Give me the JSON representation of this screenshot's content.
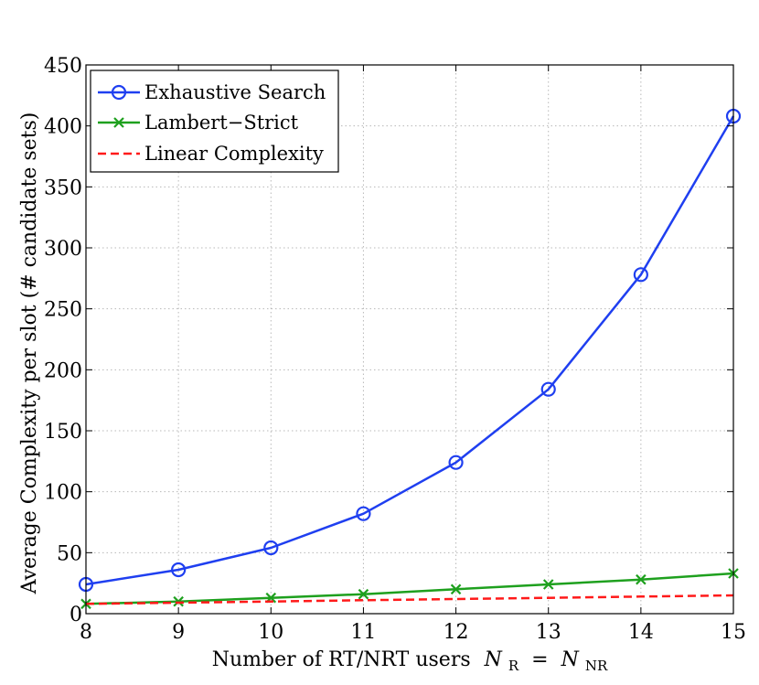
{
  "chart_data": {
    "type": "line",
    "title": "",
    "xlabel": "Number of RT/NRT users",
    "xlabel_math": {
      "left": "N",
      "left_sub": "R",
      "eq": " = ",
      "right": "N",
      "right_sub": "NR"
    },
    "ylabel": "Average Complexity per slot (# candidate sets)",
    "x": [
      8,
      9,
      10,
      11,
      12,
      13,
      14,
      15
    ],
    "xlim": [
      8,
      15
    ],
    "ylim": [
      0,
      450
    ],
    "xticks": [
      "8",
      "9",
      "10",
      "11",
      "12",
      "13",
      "14",
      "15"
    ],
    "yticks": [
      "0",
      "50",
      "100",
      "150",
      "200",
      "250",
      "300",
      "350",
      "400",
      "450"
    ],
    "grid": true,
    "legend_position": "top-left",
    "series": [
      {
        "name": "Exhaustive Search",
        "color": "#1f3ff0",
        "marker": "circle",
        "line": "solid",
        "values": [
          24,
          36,
          54,
          82,
          124,
          184,
          278,
          408
        ]
      },
      {
        "name": "Lambert−Strict",
        "color": "#1ea01e",
        "marker": "x",
        "line": "solid",
        "values": [
          8,
          10,
          13,
          16,
          20,
          24,
          28,
          33
        ]
      },
      {
        "name": "Linear Complexity",
        "color": "#ff1a1a",
        "marker": "none",
        "line": "dashed",
        "values": [
          8,
          9,
          10,
          11,
          12,
          13,
          14,
          15
        ]
      }
    ]
  }
}
